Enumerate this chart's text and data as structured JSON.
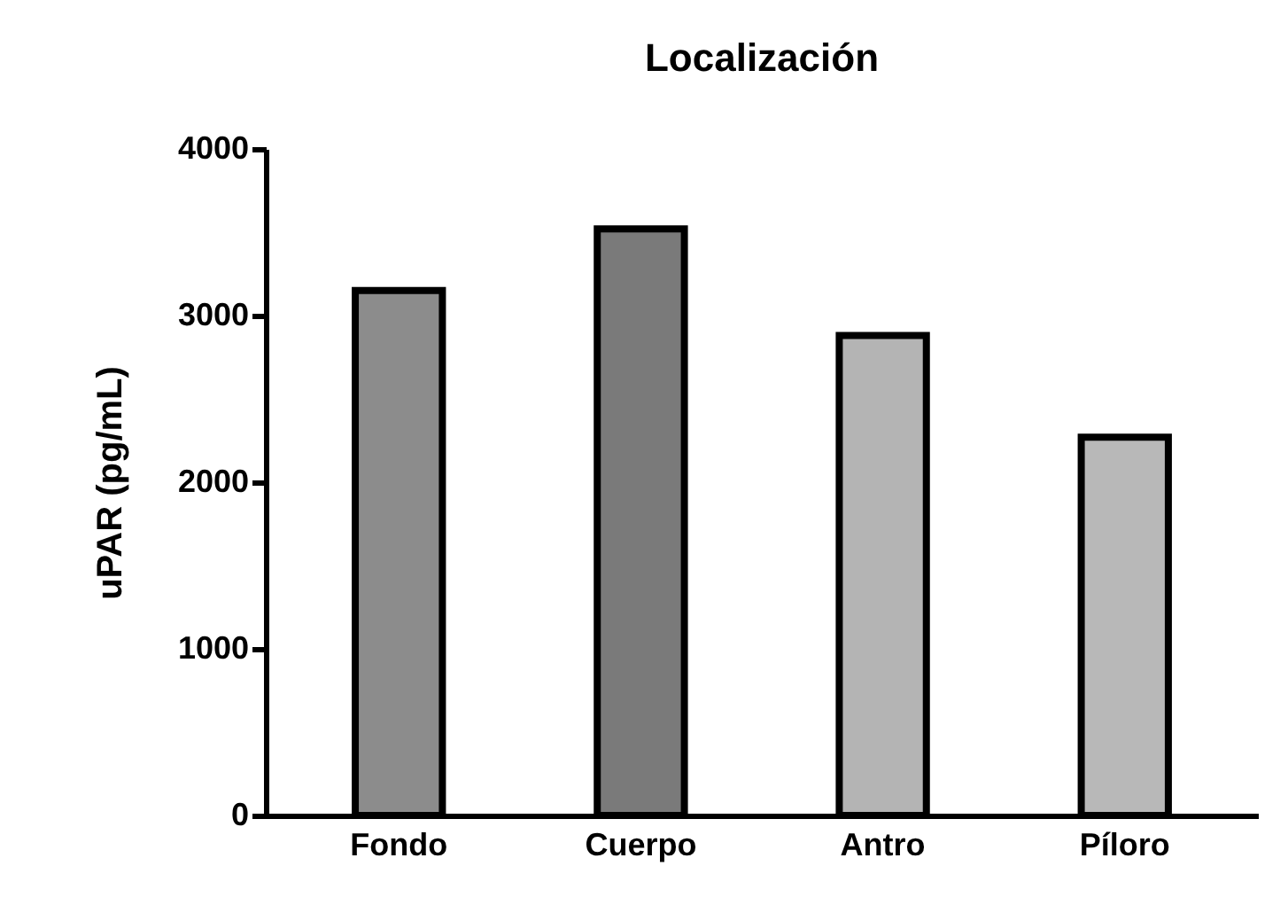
{
  "chart_data": {
    "type": "bar",
    "title": "Localización",
    "ylabel": "uPAR (pg/mL)",
    "categories": [
      "Fondo",
      "Cuerpo",
      "Antro",
      "Píloro"
    ],
    "values": [
      3150,
      3520,
      2880,
      2270
    ],
    "colors": [
      "#8c8c8c",
      "#7a7a7a",
      "#b4b4b4",
      "#b8b8b8"
    ],
    "ylim": [
      0,
      4000
    ],
    "yticks": [
      0,
      1000,
      2000,
      3000,
      4000
    ],
    "grid": false,
    "legend": false
  }
}
